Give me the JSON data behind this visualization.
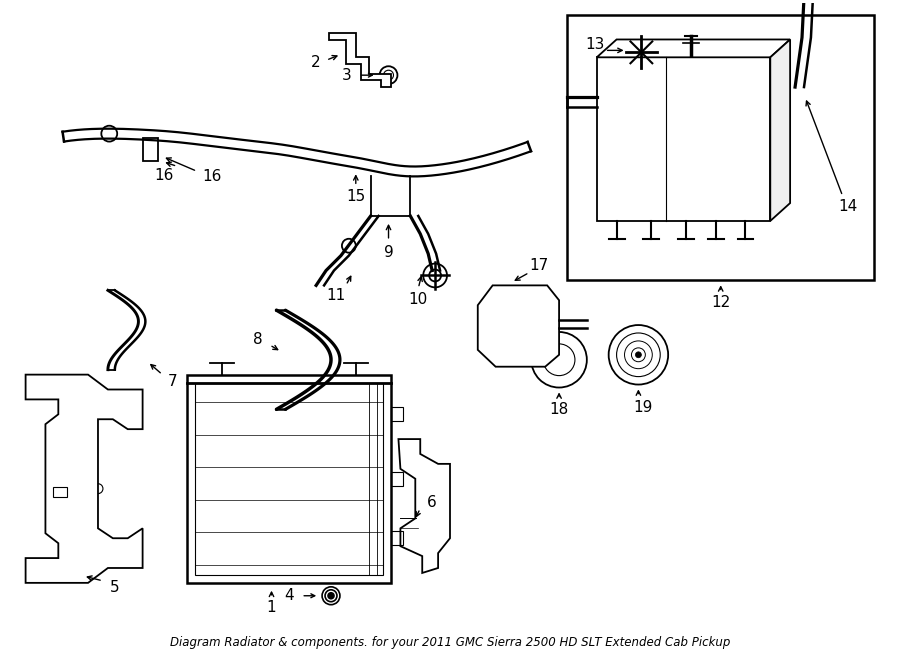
{
  "bg_color": "#ffffff",
  "line_color": "#000000",
  "label_color": "#000000",
  "title": "Diagram Radiator & components. for your 2011 GMC Sierra 2500 HD SLT Extended Cab Pickup",
  "title_fontsize": 8.5,
  "label_fontsize": 11,
  "fig_width": 9.0,
  "fig_height": 6.61,
  "dpi": 100
}
